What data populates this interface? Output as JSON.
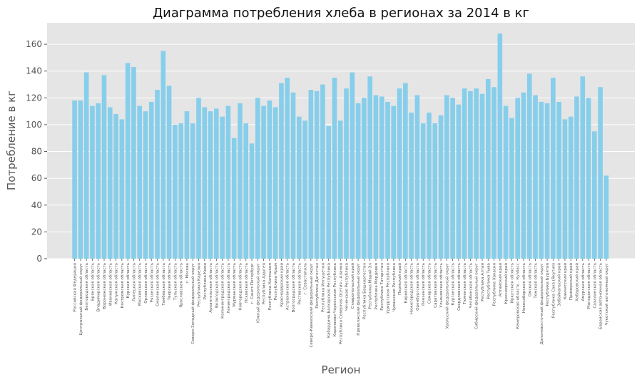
{
  "chart_data": {
    "type": "bar",
    "title": "Диаграмма потребления хлеба в регионах за 2014 в кг",
    "xlabel": "Регион",
    "ylabel": "Потребление в кг",
    "ylim": [
      0,
      176
    ],
    "yticks": [
      0,
      20,
      40,
      60,
      80,
      100,
      120,
      140,
      160
    ],
    "grid": true,
    "bar_color": "#87CEEB",
    "background_color": "#E5E5E5",
    "categories": [
      "Российская Федерация",
      "Центральный федеральный округ",
      "Белгородская область",
      "Брянская область",
      "Владимирская область",
      "Воронежская область",
      "Ивановская область",
      "Калужская область",
      "Костромская область",
      "Курская область",
      "Липецкая область",
      "Московская область",
      "Орловская область",
      "Рязанская область",
      "Смоленская область",
      "Тамбовская область",
      "Тверская область",
      "Тульская область",
      "Ярославская область",
      "г. Москва",
      "Северо-Западный федеральный округ",
      "Республика Карелия",
      "Республика Коми",
      "Архангельская область",
      "Вологодская область",
      "Калининградская область",
      "Ленинградская область",
      "Мурманская область",
      "Новгородская область",
      "Псковская область",
      "г. Санкт-Петербург",
      "Южный федеральный округ",
      "Республика Адыгея",
      "Республика Калмыкия",
      "Республика Крым",
      "Краснодарский край",
      "Астраханская область",
      "Волгоградская область",
      "Ростовская область",
      "г. Севастополь",
      "Северо-Кавказский федеральный округ",
      "Республика Дагестан",
      "Республика Ингушетия",
      "Кабардино-Балкарская Республика",
      "Карачаево-Черкесская Республика",
      "Республика Северная Осетия - Алания",
      "Чеченская Республика",
      "Ставропольский край",
      "Приволжский федеральный округ",
      "Республика Башкортостан",
      "Республика Марий Эл",
      "Республика Мордовия",
      "Республика Татарстан",
      "Удмуртская Республика",
      "Чувашская Республика",
      "Пермский край",
      "Кировская область",
      "Нижегородская область",
      "Оренбургская область",
      "Пензенская область",
      "Самарская область",
      "Саратовская область",
      "Ульяновская область",
      "Уральский федеральный округ",
      "Курганская область",
      "Свердловская область",
      "Тюменская область",
      "Челябинская область",
      "Сибирский федеральный округ",
      "Республика Алтай",
      "Республика Тыва",
      "Республика Хакасия",
      "Алтайский край",
      "Красноярский край",
      "Иркутская область",
      "Кемеровская область - Кузбасс",
      "Новосибирская область",
      "Омская область",
      "Томская область",
      "Дальневосточный федеральный округ",
      "Республика Бурятия",
      "Республика Саха (Якутия)",
      "Забайкальский край",
      "Камчатский край",
      "Приморский край",
      "Хабаровский край",
      "Амурская область",
      "Магаданская область",
      "Сахалинская область",
      "Еврейская автономная область",
      "Чукотский автономный округ"
    ],
    "values": [
      118,
      118,
      139,
      114,
      116,
      137,
      113,
      108,
      104,
      146,
      143,
      114,
      110,
      117,
      126,
      155,
      129,
      100,
      101,
      110,
      101,
      120,
      113,
      110,
      112,
      106,
      114,
      90,
      116,
      101,
      86,
      120,
      114,
      118,
      113,
      131,
      135,
      124,
      106,
      103,
      126,
      125,
      130,
      99,
      135,
      103,
      127,
      139,
      116,
      120,
      136,
      122,
      121,
      117,
      114,
      127,
      131,
      109,
      122,
      101,
      109,
      101,
      107,
      122,
      120,
      115,
      127,
      125,
      127,
      123,
      134,
      128,
      168,
      114,
      105,
      120,
      124,
      138,
      122,
      117,
      116,
      135,
      117,
      104,
      106,
      121,
      136,
      120,
      95,
      128,
      62
    ]
  }
}
